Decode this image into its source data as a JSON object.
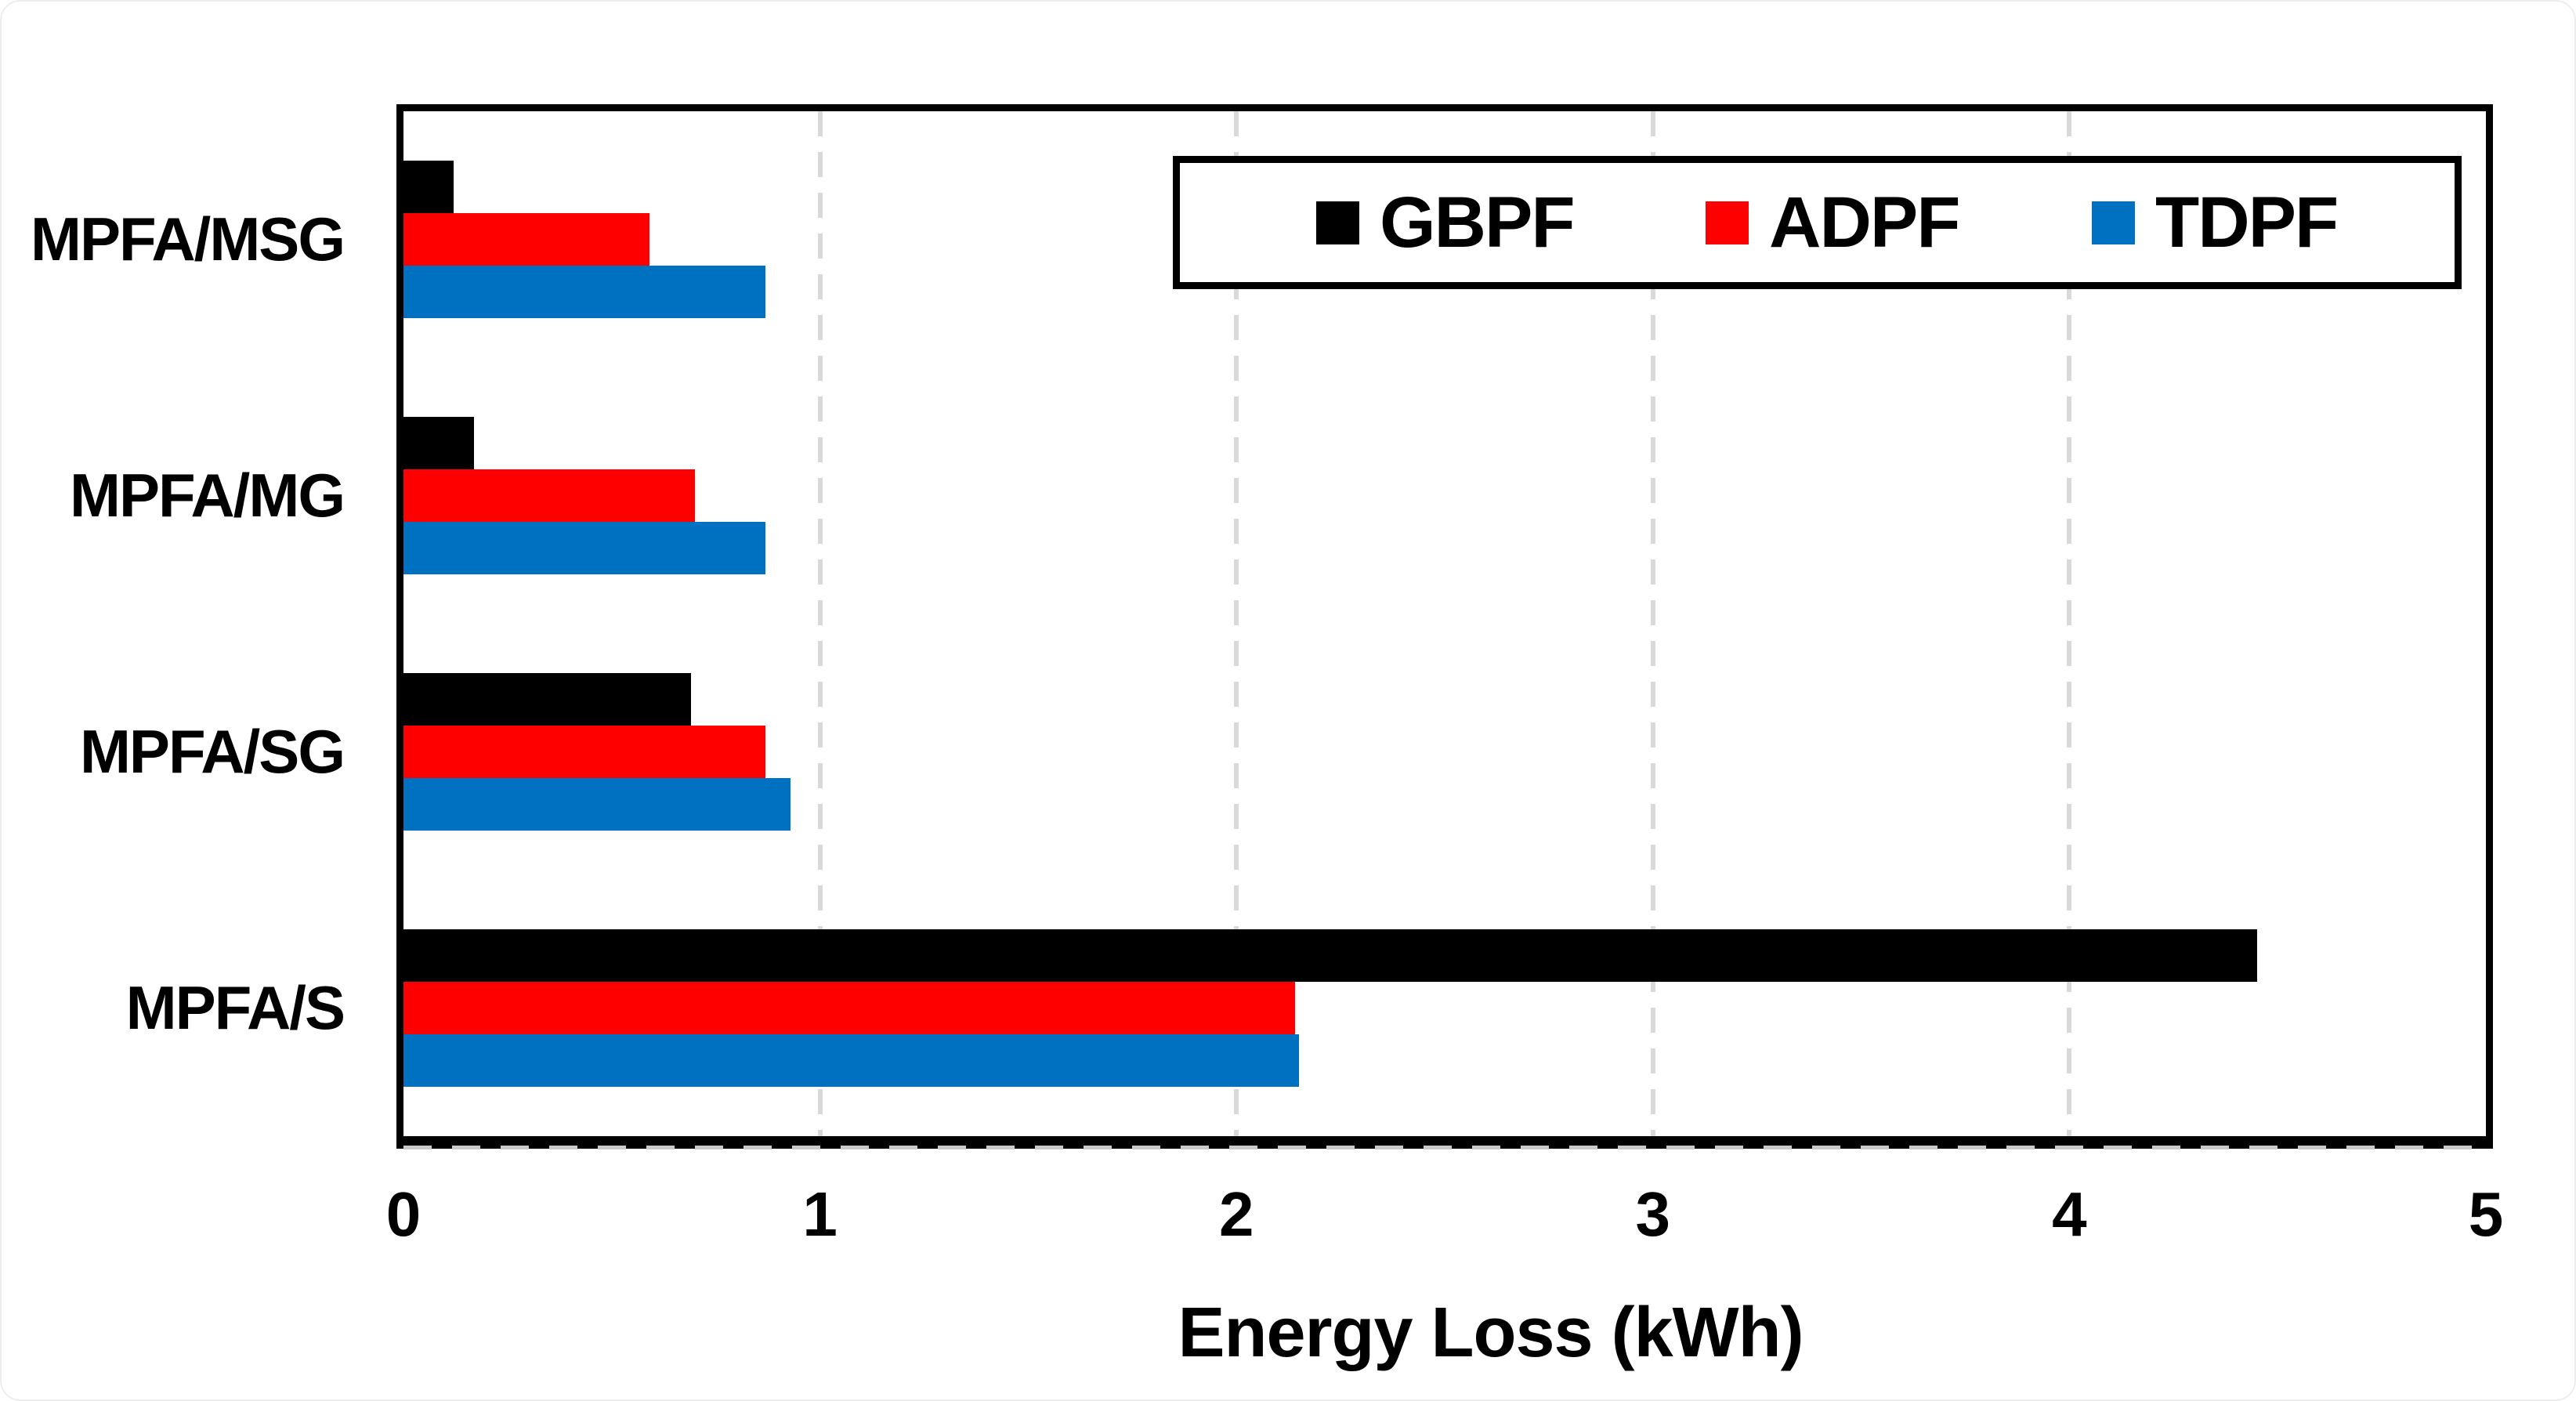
{
  "chart_data": {
    "type": "bar",
    "orientation": "horizontal",
    "title": "",
    "xlabel": "Energy Loss (kWh)",
    "ylabel": "",
    "categories": [
      "MPFA/MSG",
      "MPFA/MG",
      "MPFA/SG",
      "MPFA/S"
    ],
    "series": [
      {
        "name": "GBPF",
        "color": "#000000",
        "values": [
          0.12,
          0.17,
          0.69,
          4.45
        ]
      },
      {
        "name": "ADPF",
        "color": "#FF0000",
        "values": [
          0.59,
          0.7,
          0.87,
          2.14
        ]
      },
      {
        "name": "TDPF",
        "color": "#0070C0",
        "values": [
          0.87,
          0.87,
          0.93,
          2.15
        ]
      }
    ],
    "xlim": [
      0,
      5
    ],
    "xticks": [
      0,
      1,
      2,
      3,
      4,
      5
    ],
    "grid": "vertical-dashed-major",
    "legend_position": "top-right",
    "bar_order_top_to_bottom": [
      "GBPF",
      "ADPF",
      "TDPF"
    ]
  },
  "colors": {
    "background": "#FFFFFF",
    "axis": "#000000",
    "gridline": "#D9D9D9",
    "series_black": "#000000",
    "series_red": "#FF0000",
    "series_blue": "#0070C0"
  }
}
